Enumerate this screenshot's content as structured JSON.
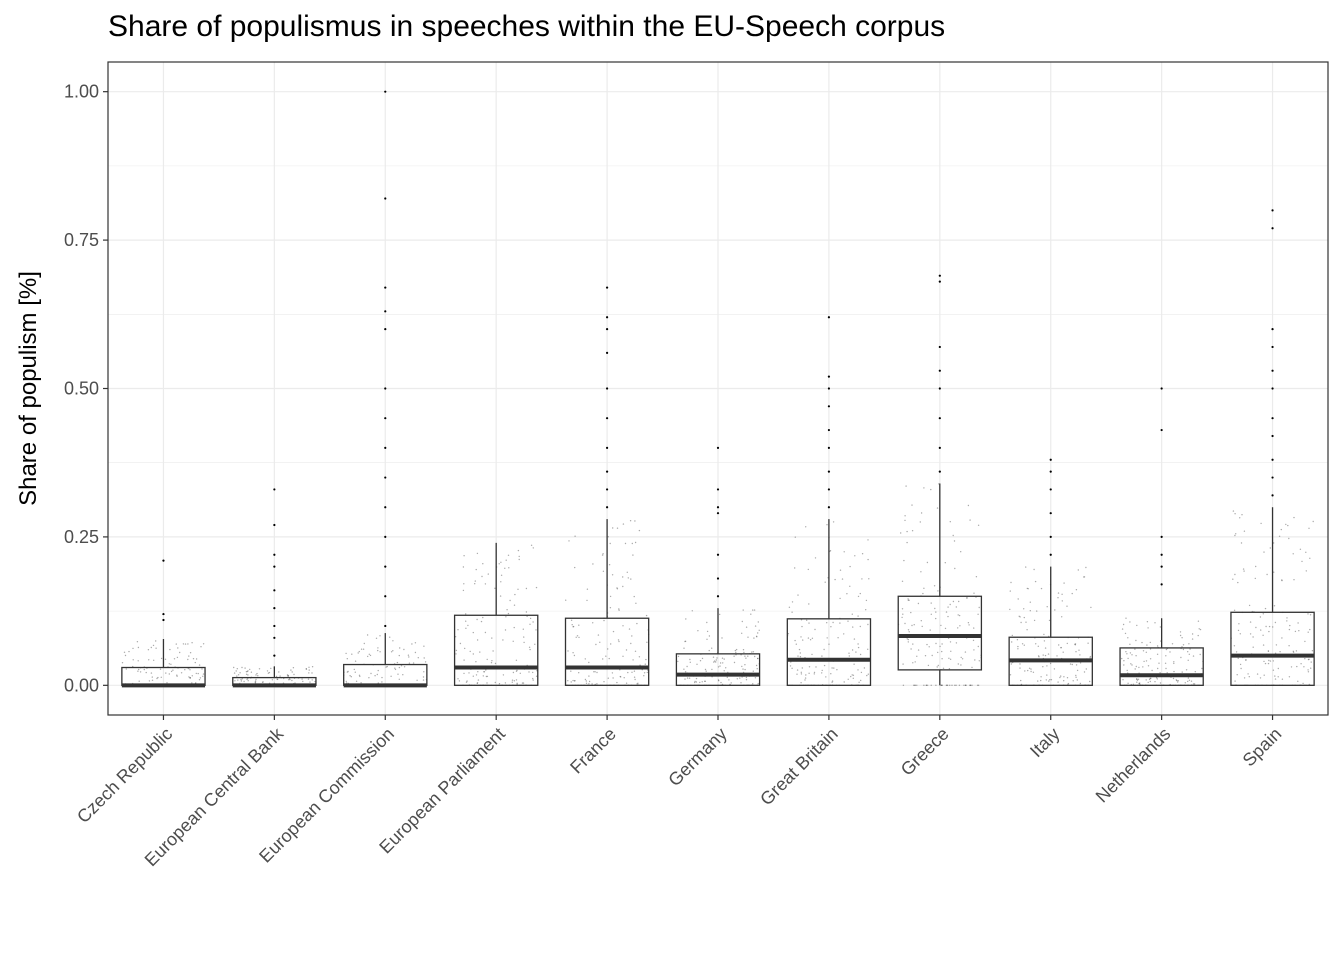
{
  "chart_data": {
    "type": "boxplot",
    "title": "Share of populismus in speeches within the EU-Speech corpus",
    "xlabel": "",
    "ylabel": "Share of populism [%]",
    "ylim": [
      -0.05,
      1.05
    ],
    "yticks": [
      0.0,
      0.25,
      0.5,
      0.75,
      1.0
    ],
    "ytick_labels": [
      "0.00",
      "0.25",
      "0.50",
      "0.75",
      "1.00"
    ],
    "grid": true,
    "categories": [
      "Czech Republic",
      "European Central Bank",
      "European Commission",
      "European Parliament",
      "France",
      "Germany",
      "Great Britain",
      "Greece",
      "Italy",
      "Netherlands",
      "Spain"
    ],
    "boxes": [
      {
        "category": "Czech Republic",
        "whisker_low": 0.0,
        "q1": 0.0,
        "median": 0.0,
        "q3": 0.03,
        "whisker_high": 0.078,
        "outliers": [
          0.12,
          0.11,
          0.21
        ]
      },
      {
        "category": "European Central Bank",
        "whisker_low": 0.0,
        "q1": 0.0,
        "median": 0.0,
        "q3": 0.013,
        "whisker_high": 0.032,
        "outliers": [
          0.05,
          0.08,
          0.1,
          0.13,
          0.16,
          0.2,
          0.22,
          0.27,
          0.33
        ]
      },
      {
        "category": "European Commission",
        "whisker_low": 0.0,
        "q1": 0.0,
        "median": 0.0,
        "q3": 0.035,
        "whisker_high": 0.088,
        "outliers": [
          0.1,
          0.15,
          0.2,
          0.25,
          0.3,
          0.35,
          0.4,
          0.45,
          0.5,
          0.6,
          0.63,
          0.67,
          0.82,
          1.0
        ]
      },
      {
        "category": "European Parliament",
        "whisker_low": 0.0,
        "q1": 0.0,
        "median": 0.03,
        "q3": 0.118,
        "whisker_high": 0.24,
        "outliers": []
      },
      {
        "category": "France",
        "whisker_low": 0.0,
        "q1": 0.0,
        "median": 0.03,
        "q3": 0.113,
        "whisker_high": 0.28,
        "outliers": [
          0.3,
          0.33,
          0.36,
          0.4,
          0.45,
          0.5,
          0.56,
          0.6,
          0.62,
          0.67
        ]
      },
      {
        "category": "Germany",
        "whisker_low": 0.0,
        "q1": 0.0,
        "median": 0.018,
        "q3": 0.053,
        "whisker_high": 0.13,
        "outliers": [
          0.15,
          0.18,
          0.22,
          0.29,
          0.3,
          0.33,
          0.4
        ]
      },
      {
        "category": "Great Britain",
        "whisker_low": 0.0,
        "q1": 0.0,
        "median": 0.043,
        "q3": 0.112,
        "whisker_high": 0.28,
        "outliers": [
          0.3,
          0.33,
          0.36,
          0.4,
          0.43,
          0.47,
          0.5,
          0.52,
          0.62
        ]
      },
      {
        "category": "Greece",
        "whisker_low": 0.0,
        "q1": 0.026,
        "median": 0.083,
        "q3": 0.15,
        "whisker_high": 0.34,
        "outliers": [
          0.36,
          0.4,
          0.45,
          0.5,
          0.53,
          0.57,
          0.68,
          0.69
        ]
      },
      {
        "category": "Italy",
        "whisker_low": 0.0,
        "q1": 0.0,
        "median": 0.042,
        "q3": 0.081,
        "whisker_high": 0.2,
        "outliers": [
          0.22,
          0.25,
          0.29,
          0.33,
          0.36,
          0.38
        ]
      },
      {
        "category": "Netherlands",
        "whisker_low": 0.0,
        "q1": 0.0,
        "median": 0.017,
        "q3": 0.063,
        "whisker_high": 0.113,
        "outliers": [
          0.17,
          0.2,
          0.22,
          0.25,
          0.43,
          0.5
        ]
      },
      {
        "category": "Spain",
        "whisker_low": 0.0,
        "q1": 0.0,
        "median": 0.05,
        "q3": 0.123,
        "whisker_high": 0.3,
        "outliers": [
          0.32,
          0.35,
          0.38,
          0.42,
          0.45,
          0.5,
          0.53,
          0.57,
          0.6,
          0.77,
          0.8
        ]
      }
    ],
    "colors": {
      "box_stroke": "#333333",
      "median": "#333333",
      "points": "#555555",
      "grid": "#ebebeb",
      "panel_border": "#333333"
    }
  }
}
